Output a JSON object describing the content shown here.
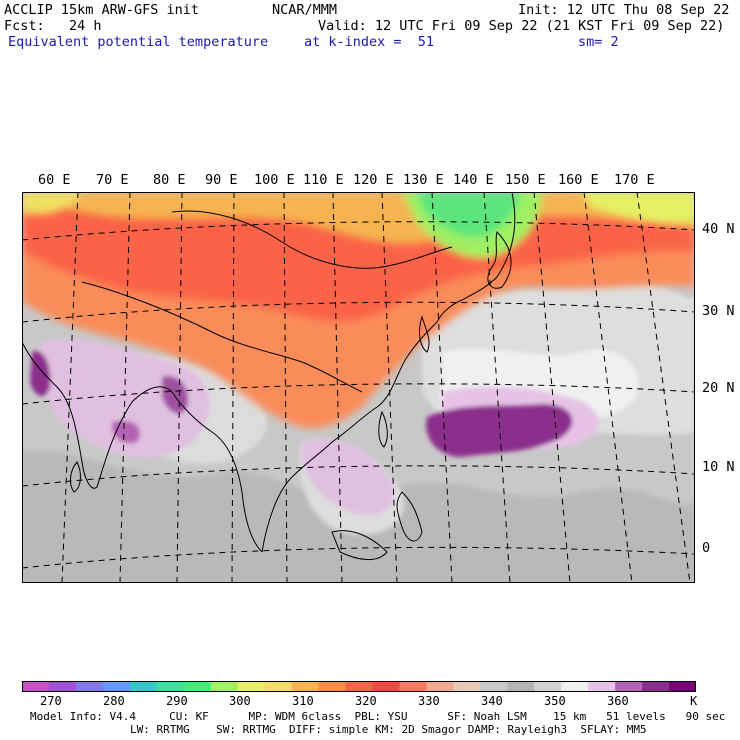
{
  "header": {
    "line1_left": "ACCLIP 15km ARW-GFS init",
    "line1_mid": "NCAR/MMM",
    "line1_right": "Init: 12 UTC Thu 08 Sep 22",
    "line2_left": "Fcst:   24 h",
    "line2_right": "Valid: 12 UTC Fri 09 Sep 22 (21 KST Fri 09 Sep 22)",
    "line3_left": "Equivalent potential temperature",
    "line3_mid": "at k-index =  51",
    "line3_right": "sm= 2"
  },
  "map": {
    "lon_labels": [
      "60 E",
      "70 E",
      "80 E",
      "90 E",
      "100 E",
      "110 E",
      "120 E",
      "130 E",
      "140 E",
      "150 E",
      "160 E",
      "170 E"
    ],
    "lat_labels": [
      "40 N",
      "30 N",
      "20 N",
      "10 N",
      "0"
    ]
  },
  "colorbar": {
    "colors": [
      "#c850c8",
      "#a050d2",
      "#8278e6",
      "#6496ff",
      "#32c8c8",
      "#32e6a0",
      "#3cf07c",
      "#a0f064",
      "#e6f064",
      "#f5dc64",
      "#f5b450",
      "#fa8c46",
      "#fa6446",
      "#fa4646",
      "#fa7864",
      "#f0aa91",
      "#e6c8b4",
      "#c8c8c8",
      "#b4b4b4",
      "#d2d2d2",
      "#f0f0f0",
      "#e6c3e6",
      "#b464b4",
      "#8c2d8c",
      "#780078"
    ],
    "tick_labels": [
      "270",
      "280",
      "290",
      "300",
      "310",
      "320",
      "330",
      "340",
      "350",
      "360",
      "K"
    ]
  },
  "footer": {
    "line1": "Model Info: V4.4     CU: KF      MP: WDM 6class  PBL: YSU      SF: Noah LSM    15 km   51 levels   90 sec",
    "line2": "LW: RRTMG    SW: RRTMG  DIFF: simple KM: 2D Smagor DAMP: Rayleigh3  SFLAY: MM5"
  }
}
